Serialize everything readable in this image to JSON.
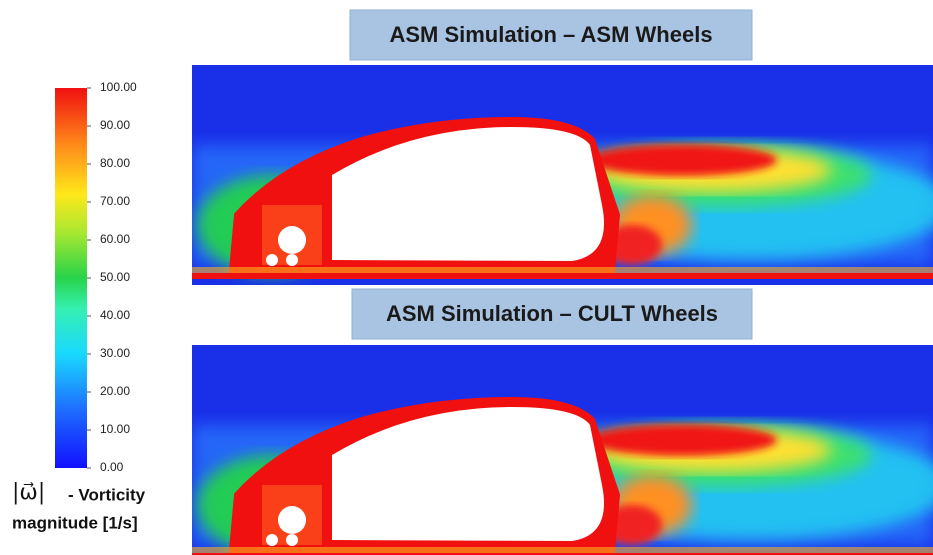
{
  "colorbar": {
    "lim": [
      0,
      100
    ],
    "ticks": [
      {
        "value": 100,
        "label": "100.00"
      },
      {
        "value": 90,
        "label": "90.00"
      },
      {
        "value": 80,
        "label": "80.00"
      },
      {
        "value": 70,
        "label": "70.00"
      },
      {
        "value": 60,
        "label": "60.00"
      },
      {
        "value": 50,
        "label": "50.00"
      },
      {
        "value": 40,
        "label": "40.00"
      },
      {
        "value": 30,
        "label": "30.00"
      },
      {
        "value": 20,
        "label": "20.00"
      },
      {
        "value": 10,
        "label": "10.00"
      },
      {
        "value": 0,
        "label": "0.00"
      }
    ],
    "symbol": "|ω⃗|",
    "label_line1": "- Vorticity",
    "label_line2": "magnitude [1/s]"
  },
  "panels": [
    {
      "title": "ASM Simulation – ASM Wheels"
    },
    {
      "title": "ASM Simulation – CULT Wheels"
    }
  ]
}
